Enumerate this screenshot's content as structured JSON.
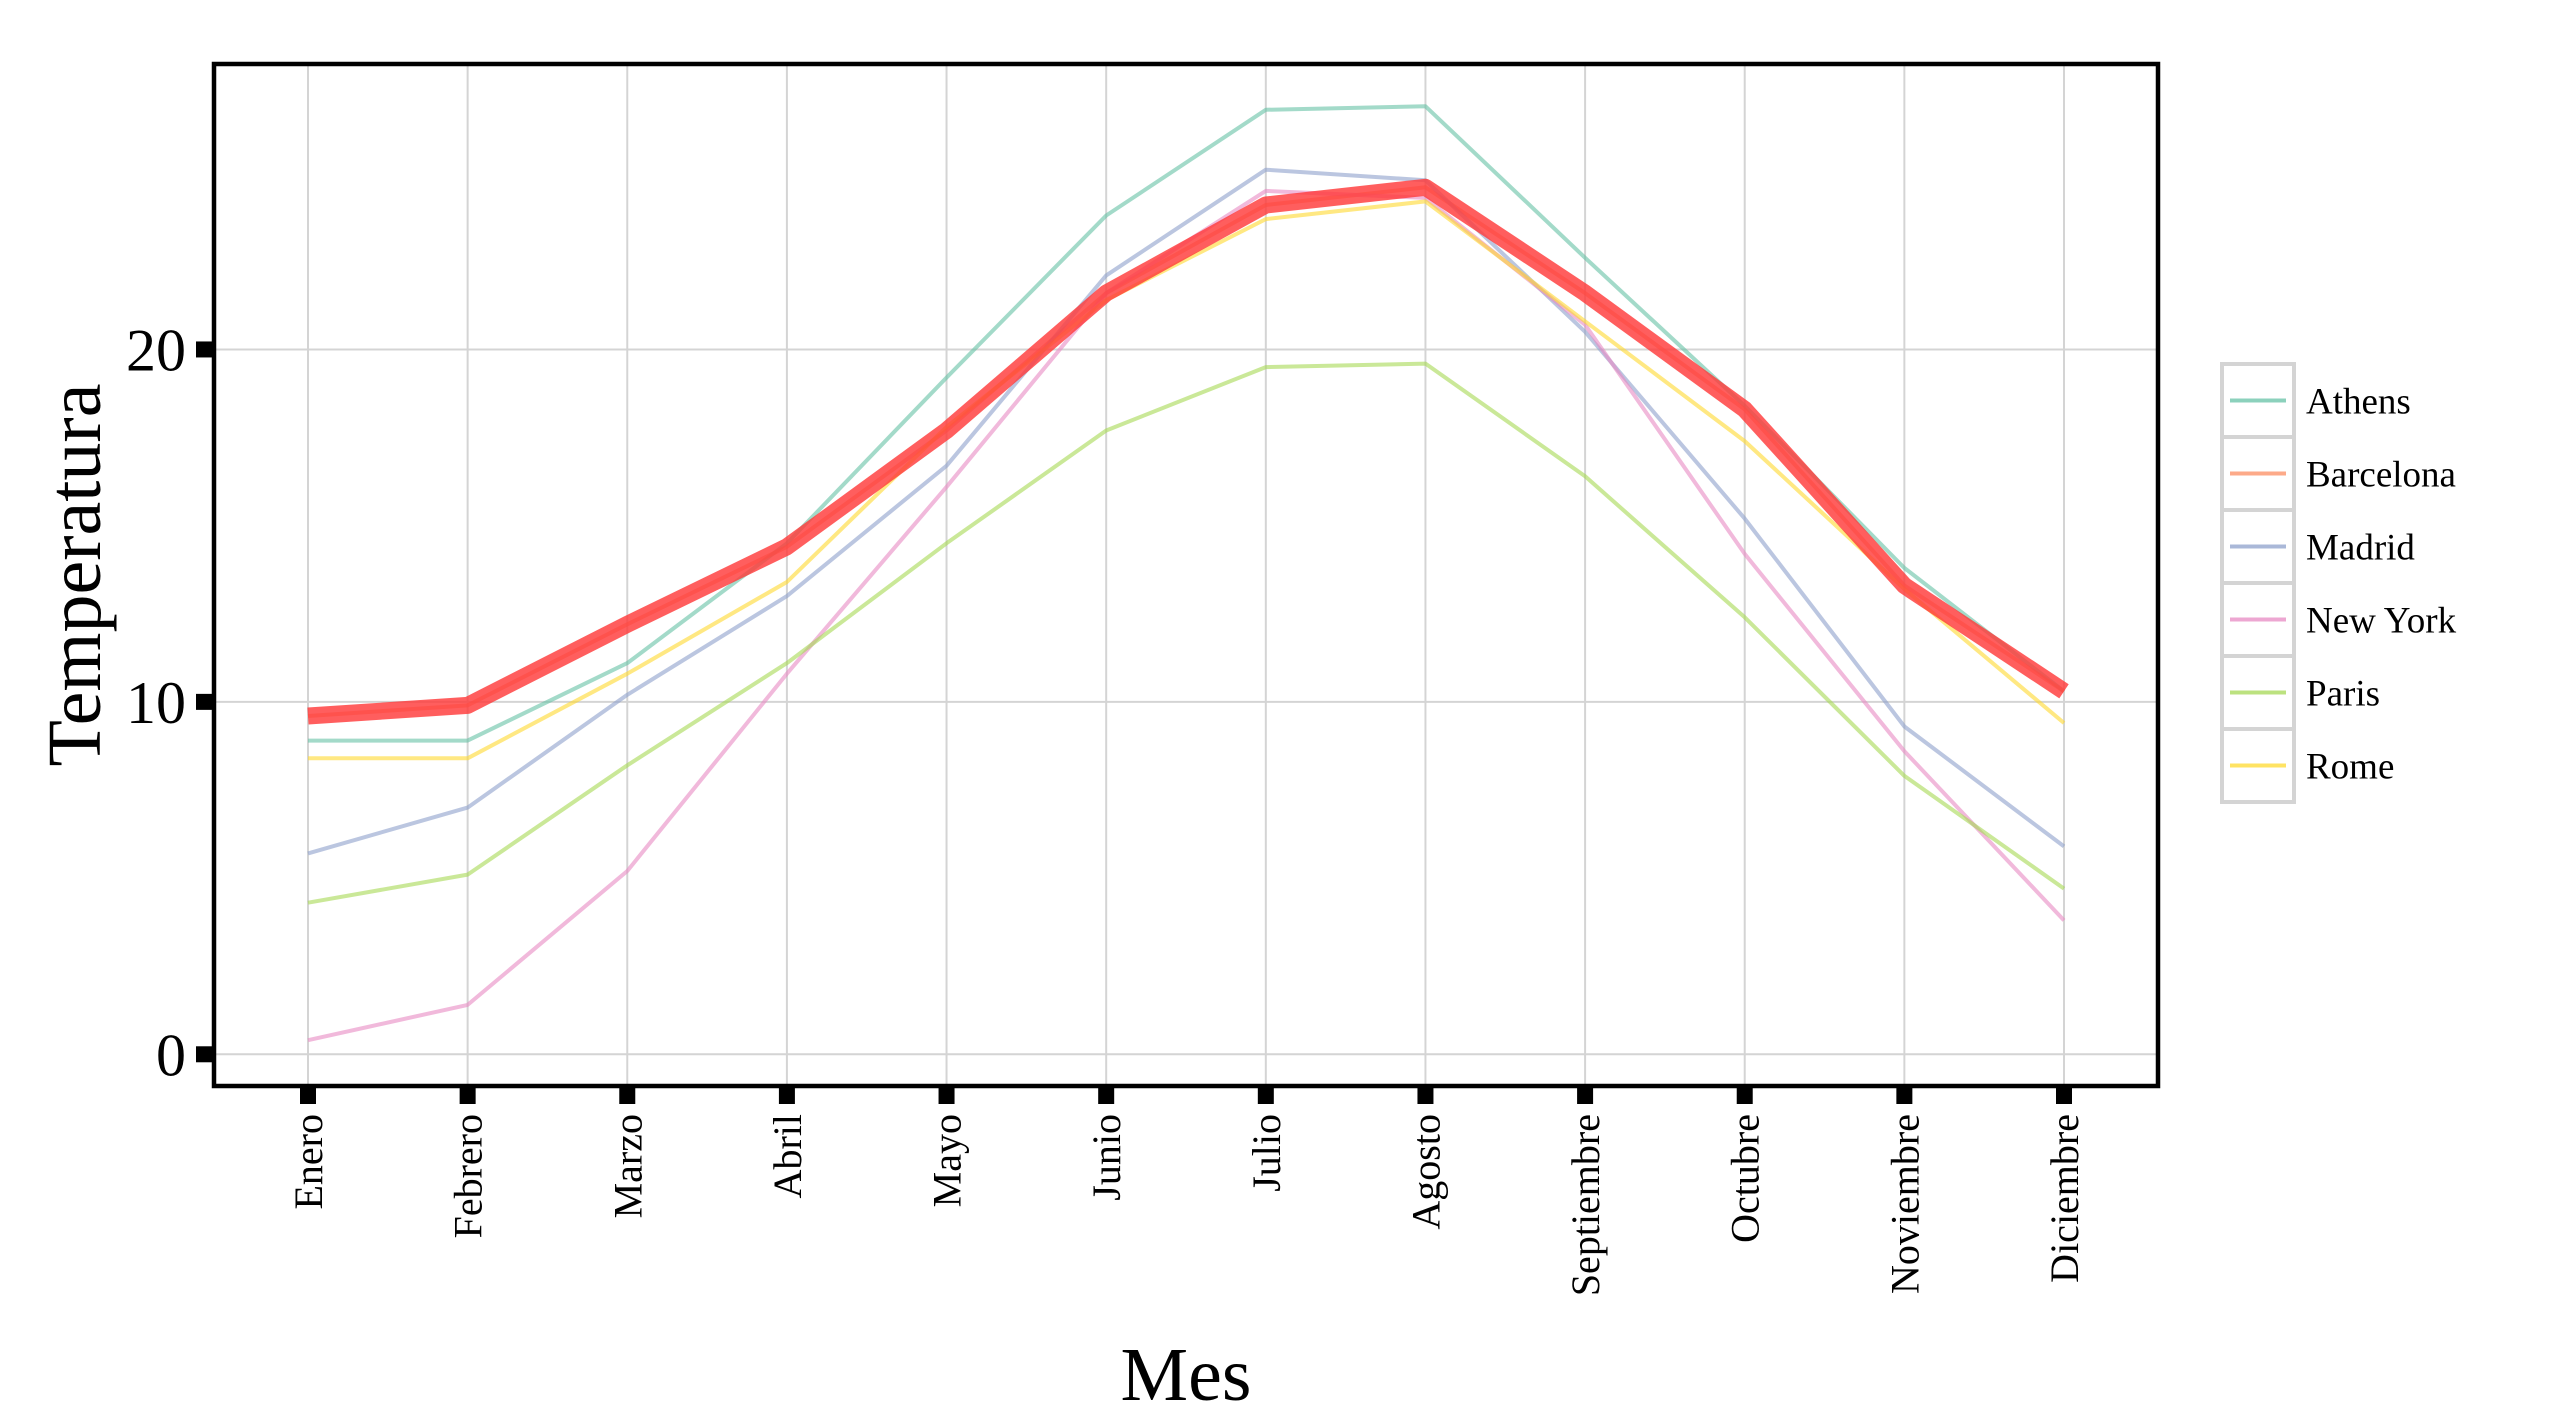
{
  "chart_data": {
    "type": "line",
    "xlabel": "Mes",
    "ylabel": "Temperatura",
    "categories": [
      "Enero",
      "Febrero",
      "Marzo",
      "Abril",
      "Mayo",
      "Junio",
      "Julio",
      "Agosto",
      "Septiembre",
      "Octubre",
      "Noviembre",
      "Diciembre"
    ],
    "ylim": [
      -0.9,
      28.1
    ],
    "yticks": [
      0,
      10,
      20
    ],
    "grid": true,
    "legend_position": "right",
    "highlighted_series": "Barcelona",
    "highlight_color": "#ff3b3b",
    "series": [
      {
        "name": "Athens",
        "color": "#66c2a5",
        "values": [
          8.9,
          8.9,
          11.1,
          14.5,
          19.2,
          23.8,
          26.8,
          26.9,
          22.6,
          18.4,
          13.8,
          10.3
        ]
      },
      {
        "name": "Barcelona",
        "color": "#fc8d62",
        "values": [
          9.6,
          9.9,
          12.2,
          14.4,
          17.7,
          21.6,
          24.1,
          24.6,
          21.6,
          18.3,
          13.3,
          10.3
        ]
      },
      {
        "name": "Madrid",
        "color": "#8da0cb",
        "values": [
          5.7,
          7.0,
          10.2,
          13.0,
          16.7,
          22.1,
          25.1,
          24.8,
          20.5,
          15.2,
          9.3,
          5.9
        ]
      },
      {
        "name": "New York",
        "color": "#e78ac3",
        "values": [
          0.4,
          1.4,
          5.2,
          10.8,
          16.1,
          21.6,
          24.5,
          24.3,
          20.7,
          14.2,
          8.6,
          3.8
        ]
      },
      {
        "name": "Paris",
        "color": "#a6d854",
        "values": [
          4.3,
          5.1,
          8.2,
          11.1,
          14.5,
          17.7,
          19.5,
          19.6,
          16.4,
          12.4,
          7.9,
          4.7
        ]
      },
      {
        "name": "Rome",
        "color": "#ffd92f",
        "values": [
          8.4,
          8.4,
          10.8,
          13.4,
          17.8,
          21.4,
          23.7,
          24.2,
          20.8,
          17.4,
          13.2,
          9.4
        ]
      }
    ]
  }
}
